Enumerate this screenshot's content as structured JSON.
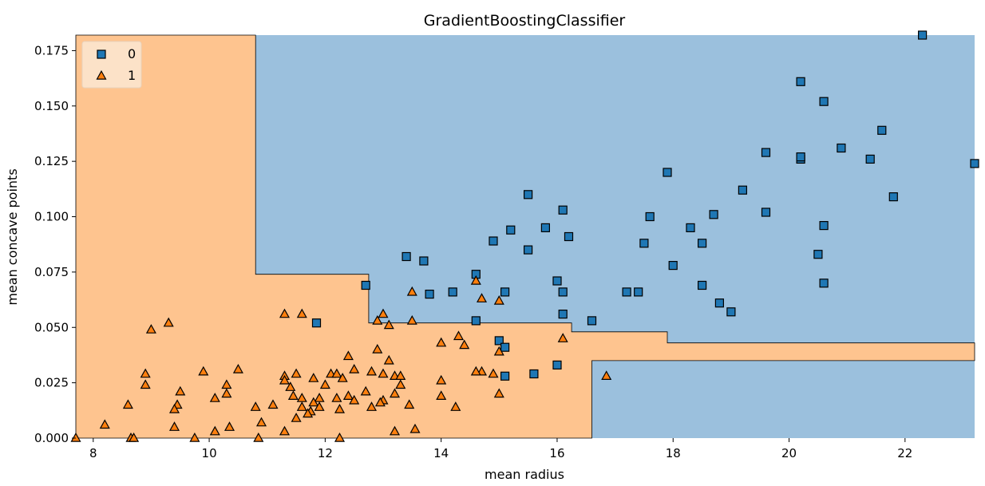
{
  "chart_data": {
    "type": "scatter",
    "title": "GradientBoostingClassifier",
    "xlabel": "mean radius",
    "ylabel": "mean concave points",
    "xlim": [
      7.7,
      23.2
    ],
    "ylim": [
      0.0,
      0.182
    ],
    "xticks": [
      "8",
      "10",
      "12",
      "14",
      "16",
      "18",
      "20",
      "22"
    ],
    "yticks": [
      "0.000",
      "0.025",
      "0.050",
      "0.075",
      "0.100",
      "0.125",
      "0.150",
      "0.175"
    ],
    "grid": false,
    "legend": {
      "position": "top-left",
      "entries": [
        "0",
        "1"
      ]
    },
    "colors": {
      "class0": "#1f77b4",
      "class1": "#ff7f0e",
      "region0": "#9bc0dd",
      "region1": "#fec48f"
    },
    "decision_regions": {
      "class1": [
        [
          [
            7.7,
            0.182
          ],
          [
            10.8,
            0.182
          ],
          [
            10.8,
            0.074
          ],
          [
            12.75,
            0.074
          ],
          [
            12.75,
            0.052
          ],
          [
            16.25,
            0.052
          ],
          [
            16.25,
            0.048
          ],
          [
            17.9,
            0.048
          ],
          [
            17.9,
            0.043
          ],
          [
            23.2,
            0.043
          ],
          [
            23.2,
            0.035
          ],
          [
            16.6,
            0.035
          ],
          [
            16.6,
            0.0
          ],
          [
            7.7,
            0.0
          ]
        ]
      ]
    },
    "series": [
      {
        "name": "0",
        "marker": "square",
        "points": [
          [
            22.3,
            0.182
          ],
          [
            20.2,
            0.161
          ],
          [
            20.6,
            0.152
          ],
          [
            21.6,
            0.139
          ],
          [
            20.9,
            0.131
          ],
          [
            19.6,
            0.129
          ],
          [
            20.2,
            0.126
          ],
          [
            20.2,
            0.127
          ],
          [
            21.4,
            0.126
          ],
          [
            23.2,
            0.124
          ],
          [
            17.9,
            0.12
          ],
          [
            19.2,
            0.112
          ],
          [
            15.5,
            0.11
          ],
          [
            21.8,
            0.109
          ],
          [
            16.1,
            0.103
          ],
          [
            19.6,
            0.102
          ],
          [
            18.7,
            0.101
          ],
          [
            17.6,
            0.1
          ],
          [
            20.6,
            0.096
          ],
          [
            18.3,
            0.095
          ],
          [
            15.8,
            0.095
          ],
          [
            15.2,
            0.094
          ],
          [
            16.2,
            0.091
          ],
          [
            14.9,
            0.089
          ],
          [
            17.5,
            0.088
          ],
          [
            18.5,
            0.088
          ],
          [
            15.5,
            0.085
          ],
          [
            20.5,
            0.083
          ],
          [
            13.4,
            0.082
          ],
          [
            13.7,
            0.08
          ],
          [
            18.0,
            0.078
          ],
          [
            14.6,
            0.074
          ],
          [
            16.0,
            0.071
          ],
          [
            20.6,
            0.07
          ],
          [
            12.7,
            0.069
          ],
          [
            18.5,
            0.069
          ],
          [
            16.1,
            0.066
          ],
          [
            17.2,
            0.066
          ],
          [
            17.4,
            0.066
          ],
          [
            14.2,
            0.066
          ],
          [
            13.8,
            0.065
          ],
          [
            15.1,
            0.066
          ],
          [
            18.8,
            0.061
          ],
          [
            19.0,
            0.057
          ],
          [
            16.1,
            0.056
          ],
          [
            16.6,
            0.053
          ],
          [
            14.6,
            0.053
          ],
          [
            11.85,
            0.052
          ],
          [
            15.0,
            0.044
          ],
          [
            15.1,
            0.041
          ],
          [
            16.0,
            0.033
          ],
          [
            15.6,
            0.029
          ],
          [
            15.1,
            0.028
          ]
        ]
      },
      {
        "name": "1",
        "marker": "triangle",
        "points": [
          [
            14.6,
            0.071
          ],
          [
            13.5,
            0.066
          ],
          [
            14.7,
            0.063
          ],
          [
            15.0,
            0.062
          ],
          [
            13.0,
            0.056
          ],
          [
            11.3,
            0.056
          ],
          [
            11.6,
            0.056
          ],
          [
            12.9,
            0.053
          ],
          [
            13.5,
            0.053
          ],
          [
            9.3,
            0.052
          ],
          [
            13.1,
            0.051
          ],
          [
            9.0,
            0.049
          ],
          [
            14.3,
            0.046
          ],
          [
            16.1,
            0.045
          ],
          [
            14.0,
            0.043
          ],
          [
            14.4,
            0.042
          ],
          [
            12.9,
            0.04
          ],
          [
            15.0,
            0.039
          ],
          [
            12.4,
            0.037
          ],
          [
            13.1,
            0.035
          ],
          [
            10.5,
            0.031
          ],
          [
            12.5,
            0.031
          ],
          [
            9.9,
            0.03
          ],
          [
            12.8,
            0.03
          ],
          [
            14.7,
            0.03
          ],
          [
            11.5,
            0.029
          ],
          [
            12.1,
            0.029
          ],
          [
            12.2,
            0.029
          ],
          [
            13.0,
            0.029
          ],
          [
            14.9,
            0.029
          ],
          [
            8.9,
            0.029
          ],
          [
            14.6,
            0.03
          ],
          [
            11.3,
            0.028
          ],
          [
            13.2,
            0.028
          ],
          [
            16.85,
            0.028
          ],
          [
            11.8,
            0.027
          ],
          [
            12.3,
            0.027
          ],
          [
            13.3,
            0.028
          ],
          [
            11.3,
            0.026
          ],
          [
            14.0,
            0.026
          ],
          [
            8.9,
            0.024
          ],
          [
            10.3,
            0.024
          ],
          [
            12.0,
            0.024
          ],
          [
            13.3,
            0.024
          ],
          [
            11.4,
            0.023
          ],
          [
            12.7,
            0.021
          ],
          [
            9.5,
            0.021
          ],
          [
            10.3,
            0.02
          ],
          [
            13.2,
            0.02
          ],
          [
            15.0,
            0.02
          ],
          [
            11.45,
            0.019
          ],
          [
            12.4,
            0.019
          ],
          [
            14.0,
            0.019
          ],
          [
            10.1,
            0.018
          ],
          [
            11.6,
            0.018
          ],
          [
            11.9,
            0.018
          ],
          [
            12.2,
            0.018
          ],
          [
            13.0,
            0.017
          ],
          [
            12.95,
            0.016
          ],
          [
            12.5,
            0.017
          ],
          [
            11.8,
            0.016
          ],
          [
            8.6,
            0.015
          ],
          [
            9.45,
            0.015
          ],
          [
            11.1,
            0.015
          ],
          [
            13.45,
            0.015
          ],
          [
            10.8,
            0.014
          ],
          [
            11.6,
            0.014
          ],
          [
            12.8,
            0.014
          ],
          [
            14.25,
            0.014
          ],
          [
            9.4,
            0.013
          ],
          [
            11.9,
            0.014
          ],
          [
            11.75,
            0.012
          ],
          [
            11.7,
            0.011
          ],
          [
            12.25,
            0.013
          ],
          [
            11.5,
            0.009
          ],
          [
            10.9,
            0.007
          ],
          [
            8.2,
            0.006
          ],
          [
            9.4,
            0.005
          ],
          [
            10.35,
            0.005
          ],
          [
            13.55,
            0.004
          ],
          [
            11.3,
            0.003
          ],
          [
            13.2,
            0.003
          ],
          [
            10.1,
            0.003
          ],
          [
            8.65,
            0.0
          ],
          [
            8.7,
            0.0
          ],
          [
            9.75,
            0.0
          ],
          [
            10.85,
            0.0
          ],
          [
            12.25,
            0.0
          ],
          [
            7.7,
            0.0
          ]
        ]
      }
    ]
  }
}
